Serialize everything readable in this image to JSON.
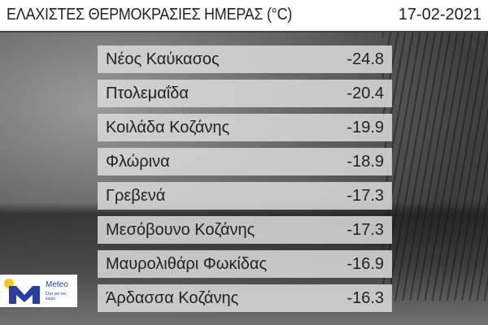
{
  "header": {
    "title": "ΕΛΑΧΙΣΤΕΣ ΘΕΡΜΟΚΡΑΣΙΕΣ ΗΜΕΡΑΣ (°C)",
    "date": "17-02-2021"
  },
  "rows": [
    {
      "name": "Νέος Καύκασος",
      "value": "-24.8"
    },
    {
      "name": "Πτολεμαΐδα",
      "value": "-20.4"
    },
    {
      "name": "Κοιλάδα Κοζάνης",
      "value": "-19.9"
    },
    {
      "name": "Φλώρινα",
      "value": "-18.9"
    },
    {
      "name": "Γρεβενά",
      "value": "-17.3"
    },
    {
      "name": "Μεσόβουνο Κοζάνης",
      "value": "-17.3"
    },
    {
      "name": "Μαυρολιθάρι Φωκίδας",
      "value": "-16.9"
    },
    {
      "name": "Άρδασσα Κοζάνης",
      "value": "-16.3"
    }
  ],
  "logo": {
    "brand": "Meteo",
    "slogan": "Όλα για τον καιρό",
    "colors": {
      "blue": "#2b3ea0",
      "yellow": "#f2c81e"
    }
  }
}
